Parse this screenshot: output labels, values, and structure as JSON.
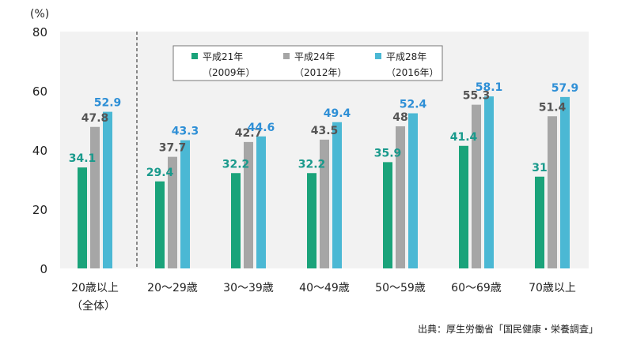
{
  "chart_data": {
    "type": "bar",
    "y_unit_label": "(%)",
    "ylim": [
      0,
      80
    ],
    "yticks": [
      0,
      20,
      40,
      60,
      80
    ],
    "grid": false,
    "categories": [
      {
        "line1": "20歳以上",
        "line2": "（全体）"
      },
      {
        "line1": "20～29歳",
        "line2": ""
      },
      {
        "line1": "30～39歳",
        "line2": ""
      },
      {
        "line1": "40～49歳",
        "line2": ""
      },
      {
        "line1": "50～59歳",
        "line2": ""
      },
      {
        "line1": "60～69歳",
        "line2": ""
      },
      {
        "line1": "70歳以上",
        "line2": ""
      }
    ],
    "series": [
      {
        "name": "平成21年",
        "sub": "（2009年）",
        "color": "#1aa37a",
        "label_color": "#1a9a8c",
        "values": [
          34.1,
          29.4,
          32.2,
          32.2,
          35.9,
          41.4,
          31
        ],
        "labels": [
          "34.1",
          "29.4",
          "32.2",
          "32.2",
          "35.9",
          "41.4",
          "31"
        ]
      },
      {
        "name": "平成24年",
        "sub": "（2012年）",
        "color": "#a6a6a6",
        "label_color": "#555555",
        "values": [
          47.8,
          37.7,
          42.7,
          43.5,
          48,
          55.3,
          51.4
        ],
        "labels": [
          "47.8",
          "37.7",
          "42.7",
          "43.5",
          "48",
          "55.3",
          "51.4"
        ]
      },
      {
        "name": "平成28年",
        "sub": "（2016年）",
        "color": "#4bb8d4",
        "label_color": "#2e8fd6",
        "values": [
          52.9,
          43.3,
          44.6,
          49.4,
          52.4,
          58.1,
          57.9
        ],
        "labels": [
          "52.9",
          "43.3",
          "44.6",
          "49.4",
          "52.4",
          "58.1",
          "57.9"
        ]
      }
    ],
    "legend_placement": "top-center"
  },
  "source": "出典：厚生労働省「国民健康・栄養調査」"
}
